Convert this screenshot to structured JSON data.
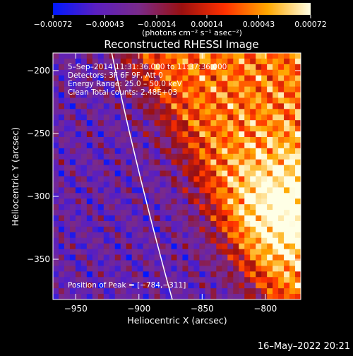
{
  "chart_data": {
    "type": "heatmap",
    "title": "Reconstructed RHESSI Image",
    "xlabel": "Heliocentric X (arcsec)",
    "ylabel": "Heliocentric Y (arcsec)",
    "xlim": [
      -968,
      -772
    ],
    "ylim": [
      -382,
      -186
    ],
    "x_ticks": [
      -950,
      -900,
      -850,
      -800
    ],
    "x_tick_labels": [
      "−950",
      "−900",
      "−850",
      "−800"
    ],
    "y_ticks": [
      -200,
      -250,
      -300,
      -350
    ],
    "y_tick_labels": [
      "−200",
      "−250",
      "−300",
      "−350"
    ],
    "colorbar": {
      "range": [
        -0.00072,
        0.00072
      ],
      "tick_values": [
        -0.00072,
        -0.00043,
        -0.00014,
        0.00014,
        0.00043,
        0.00072
      ],
      "tick_labels": [
        "−0.00072",
        "−0.00043",
        "−0.00014",
        "0.00014",
        "0.00043",
        "0.00072"
      ],
      "units_label": "(photons cm⁻² s⁻¹ asec⁻²)",
      "colors": [
        "#0018ff",
        "#5a1fc0",
        "#7a2a8a",
        "#9a1010",
        "#ff3000",
        "#ffa800",
        "#ffffe6"
      ]
    },
    "annotations": [
      "5–Sep–2014 11:31:36.000 to 11:37:36.000",
      "Detectors: 3F 6F 9F, Att 0",
      "Energy Range: 25.0 – 50.0 keV",
      "Clean     Total counts: 2.48E+03",
      "Position of Peak = [−784,−311]"
    ],
    "peak": {
      "x": -784,
      "y": -311
    },
    "limb_curve": {
      "x_top": -922,
      "x_bottom": -873
    },
    "series": []
  },
  "footer": {
    "timestamp": "16–May–2022 20:21"
  }
}
